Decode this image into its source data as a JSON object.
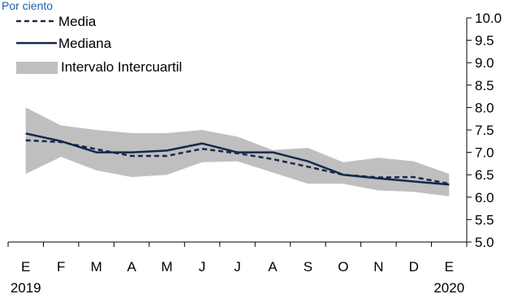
{
  "chart_data": {
    "type": "line",
    "unit_label": "Por ciento",
    "categories": [
      "E",
      "F",
      "M",
      "A",
      "M",
      "J",
      "J",
      "A",
      "S",
      "O",
      "N",
      "D",
      "E"
    ],
    "year_labels": [
      {
        "index": 0,
        "text": "2019"
      },
      {
        "index": 12,
        "text": "2020"
      }
    ],
    "y_ticks": [
      "5.0",
      "5.5",
      "6.0",
      "6.5",
      "7.0",
      "7.5",
      "8.0",
      "8.5",
      "9.0",
      "9.5",
      "10.0"
    ],
    "ylim": [
      5.0,
      10.0
    ],
    "y_axis_side": "right",
    "legend_position": "top-left",
    "series": [
      {
        "name": "Media",
        "style": "dashed",
        "color": "#1b2a4a",
        "values": [
          7.27,
          7.23,
          7.07,
          6.92,
          6.92,
          7.08,
          6.98,
          6.85,
          6.68,
          6.5,
          6.44,
          6.45,
          6.3
        ]
      },
      {
        "name": "Mediana",
        "style": "solid",
        "color": "#13294b",
        "values": [
          7.42,
          7.25,
          7.0,
          7.0,
          7.04,
          7.2,
          7.0,
          7.0,
          6.8,
          6.5,
          6.42,
          6.35,
          6.28
        ]
      }
    ],
    "band": {
      "name": "Intervalo Intercuartil",
      "color": "#bfbfbf",
      "lower": [
        6.52,
        6.9,
        6.6,
        6.45,
        6.5,
        6.78,
        6.8,
        6.55,
        6.3,
        6.3,
        6.15,
        6.12,
        6.02
      ],
      "upper": [
        8.0,
        7.6,
        7.5,
        7.43,
        7.43,
        7.5,
        7.35,
        7.05,
        7.1,
        6.78,
        6.88,
        6.8,
        6.52
      ]
    }
  }
}
